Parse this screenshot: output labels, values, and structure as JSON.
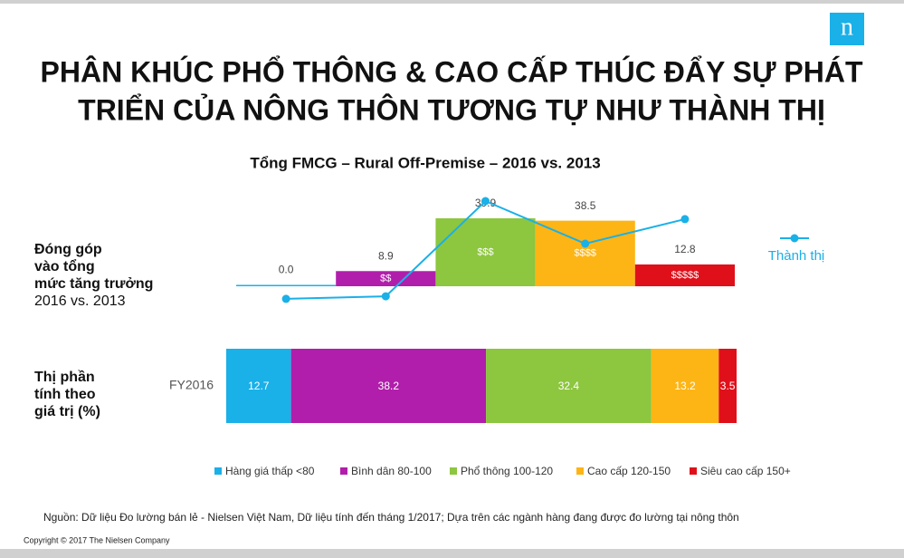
{
  "header": {
    "logo": "n",
    "title": [
      "PHÂN KHÚC PHỔ THÔNG & CAO CẤP THÚC ĐẨY SỰ PHÁT",
      "TRIỂN CỦA NÔNG THÔN TƯƠNG TỰ NHƯ THÀNH THỊ"
    ]
  },
  "chart_data": {
    "type": "bar-line",
    "title": "Tổng FMCG – Rural Off-Premise – 2016 vs. 2013",
    "categories": [
      "Hàng giá thấp <80",
      "Bình dân 80-100",
      "Phổ thông 100-120",
      "Cao cấp 120-150",
      "Siêu cao cấp 150+"
    ],
    "colors": [
      "#1ab0e8",
      "#b11eab",
      "#8dc63f",
      "#fdb515",
      "#e0101a"
    ],
    "contribution": {
      "label_bold": [
        "Đóng góp",
        "vào tổng",
        "mức tăng trưởng"
      ],
      "label": "2016 vs. 2013",
      "values": [
        0.0,
        8.9,
        39.9,
        38.5,
        12.8
      ],
      "value_labels": [
        "0.0",
        "8.9",
        "39.9",
        "38.5",
        "12.8"
      ],
      "bar_labels": [
        null,
        "$$",
        "$$$",
        "$$$$",
        "$$$$$"
      ]
    },
    "line": {
      "name": "Thành thị",
      "color": "#1ab0e8",
      "values": [
        -7.4,
        -5.9,
        50.0,
        25.0,
        39.4
      ]
    },
    "share": {
      "label_bold": [
        "Thị phần",
        "tính theo",
        "giá trị (%)"
      ],
      "category": "FY2016",
      "values": [
        12.7,
        38.2,
        32.4,
        13.2,
        3.5
      ]
    }
  },
  "footer": {
    "source": "Nguồn: Dữ liệu Đo lường bán lẻ - Nielsen Việt Nam, Dữ liệu tính đến tháng 1/2017; Dựa trên các ngành hàng đang được đo lường tại nông thôn",
    "copyright": "Copyright © 2017  The Nielsen Company"
  }
}
